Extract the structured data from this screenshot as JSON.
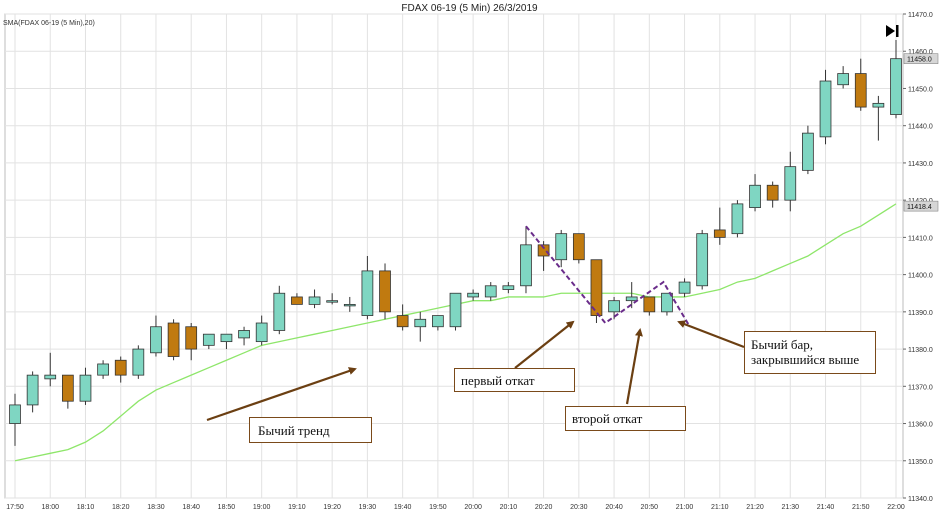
{
  "chart_data": {
    "type": "candlestick",
    "title": "FDAX 06-19 (5 Min)  26/3/2019",
    "indicator": "SMA(FDAX 06-19 (5 Min),20)",
    "ylim": [
      11340,
      11470
    ],
    "yticks": [
      11340,
      11350,
      11360,
      11370,
      11380,
      11390,
      11400,
      11410,
      11420,
      11430,
      11440,
      11450,
      11460,
      11470
    ],
    "ytick_labels": [
      "11340.0",
      "11350.0",
      "11360.0",
      "11370.0",
      "11380.0",
      "11390.0",
      "11400.0",
      "11410.0",
      "11420.0",
      "11430.0",
      "11440.0",
      "11450.0",
      "11460.0",
      "11470.0"
    ],
    "xtick_labels": [
      "17:50",
      "18:00",
      "18:10",
      "18:20",
      "18:30",
      "18:40",
      "18:50",
      "19:00",
      "19:10",
      "19:20",
      "19:30",
      "19:40",
      "19:50",
      "20:00",
      "20:10",
      "20:20",
      "20:30",
      "20:40",
      "20:50",
      "21:00",
      "21:10",
      "21:20",
      "21:30",
      "21:40",
      "21:50",
      "22:00"
    ],
    "price_tags": [
      {
        "label": "11458.0",
        "value": 11458.0
      },
      {
        "label": "11418.4",
        "value": 11418.4
      }
    ],
    "top_tag_label": "11460.0",
    "colors": {
      "up": "#7fd6c2",
      "down": "#c07a10",
      "outline": "#333333",
      "sma": "#8ee66a",
      "grid": "#e2e2e2",
      "annotation": "#6b3f12",
      "zigzag": "#6a2c8a"
    },
    "grid": true,
    "candles": [
      {
        "o": 11360,
        "h": 11368,
        "l": 11354,
        "c": 11365
      },
      {
        "o": 11365,
        "h": 11374,
        "l": 11363,
        "c": 11373
      },
      {
        "o": 11372,
        "h": 11379,
        "l": 11370,
        "c": 11373
      },
      {
        "o": 11373,
        "h": 11373,
        "l": 11364,
        "c": 11366
      },
      {
        "o": 11366,
        "h": 11375,
        "l": 11365,
        "c": 11373
      },
      {
        "o": 11373,
        "h": 11377,
        "l": 11372,
        "c": 11376
      },
      {
        "o": 11377,
        "h": 11378,
        "l": 11371,
        "c": 11373
      },
      {
        "o": 11373,
        "h": 11381,
        "l": 11372,
        "c": 11380
      },
      {
        "o": 11379,
        "h": 11389,
        "l": 11378,
        "c": 11386
      },
      {
        "o": 11387,
        "h": 11388,
        "l": 11377,
        "c": 11378
      },
      {
        "o": 11386,
        "h": 11387,
        "l": 11377,
        "c": 11380
      },
      {
        "o": 11381,
        "h": 11384,
        "l": 11380,
        "c": 11384
      },
      {
        "o": 11382,
        "h": 11384,
        "l": 11380,
        "c": 11384
      },
      {
        "o": 11383,
        "h": 11386,
        "l": 11381,
        "c": 11385
      },
      {
        "o": 11382,
        "h": 11389,
        "l": 11381,
        "c": 11387
      },
      {
        "o": 11385,
        "h": 11397,
        "l": 11384,
        "c": 11395
      },
      {
        "o": 11394,
        "h": 11395,
        "l": 11392,
        "c": 11392
      },
      {
        "o": 11392,
        "h": 11396,
        "l": 11391,
        "c": 11394
      },
      {
        "o": 11393,
        "h": 11395,
        "l": 11392,
        "c": 11393
      },
      {
        "o": 11392,
        "h": 11394,
        "l": 11390,
        "c": 11392
      },
      {
        "o": 11389,
        "h": 11405,
        "l": 11388,
        "c": 11401
      },
      {
        "o": 11401,
        "h": 11403,
        "l": 11388,
        "c": 11390
      },
      {
        "o": 11389,
        "h": 11392,
        "l": 11385,
        "c": 11386
      },
      {
        "o": 11386,
        "h": 11390,
        "l": 11382,
        "c": 11388
      },
      {
        "o": 11386,
        "h": 11389,
        "l": 11385,
        "c": 11389
      },
      {
        "o": 11386,
        "h": 11395,
        "l": 11385,
        "c": 11395
      },
      {
        "o": 11394,
        "h": 11396,
        "l": 11393,
        "c": 11395
      },
      {
        "o": 11394,
        "h": 11398,
        "l": 11393,
        "c": 11397
      },
      {
        "o": 11396,
        "h": 11398,
        "l": 11395,
        "c": 11397
      },
      {
        "o": 11397,
        "h": 11413,
        "l": 11395,
        "c": 11408
      },
      {
        "o": 11408,
        "h": 11409,
        "l": 11401,
        "c": 11405
      },
      {
        "o": 11404,
        "h": 11412,
        "l": 11402,
        "c": 11411
      },
      {
        "o": 11411,
        "h": 11411,
        "l": 11403,
        "c": 11404
      },
      {
        "o": 11404,
        "h": 11404,
        "l": 11387,
        "c": 11389
      },
      {
        "o": 11390,
        "h": 11394,
        "l": 11388,
        "c": 11393
      },
      {
        "o": 11393,
        "h": 11398,
        "l": 11391,
        "c": 11394
      },
      {
        "o": 11394,
        "h": 11394,
        "l": 11389,
        "c": 11390
      },
      {
        "o": 11390,
        "h": 11395,
        "l": 11389,
        "c": 11395
      },
      {
        "o": 11395,
        "h": 11399,
        "l": 11394,
        "c": 11398
      },
      {
        "o": 11397,
        "h": 11412,
        "l": 11396,
        "c": 11411
      },
      {
        "o": 11412,
        "h": 11418,
        "l": 11408,
        "c": 11410
      },
      {
        "o": 11411,
        "h": 11420,
        "l": 11410,
        "c": 11419
      },
      {
        "o": 11418,
        "h": 11427,
        "l": 11417,
        "c": 11424
      },
      {
        "o": 11424,
        "h": 11425,
        "l": 11418,
        "c": 11420
      },
      {
        "o": 11420,
        "h": 11433,
        "l": 11417,
        "c": 11429
      },
      {
        "o": 11428,
        "h": 11440,
        "l": 11427,
        "c": 11438
      },
      {
        "o": 11437,
        "h": 11455,
        "l": 11435,
        "c": 11452
      },
      {
        "o": 11451,
        "h": 11456,
        "l": 11450,
        "c": 11454
      },
      {
        "o": 11454,
        "h": 11458,
        "l": 11444,
        "c": 11445
      },
      {
        "o": 11445,
        "h": 11448,
        "l": 11436,
        "c": 11446
      },
      {
        "o": 11443,
        "h": 11463,
        "l": 11442,
        "c": 11458
      }
    ],
    "sma": [
      11350,
      11351,
      11352,
      11353,
      11355,
      11358,
      11362,
      11366,
      11369,
      11371,
      11373,
      11375,
      11377,
      11379,
      11381,
      11382,
      11383,
      11384,
      11385,
      11386,
      11387,
      11388,
      11389,
      11390,
      11391,
      11392,
      11393,
      11393,
      11394,
      11394,
      11394,
      11395,
      11395,
      11395,
      11395,
      11395,
      11394,
      11394,
      11394,
      11395,
      11396,
      11398,
      11399,
      11401,
      11403,
      11405,
      11408,
      11411,
      11413,
      11416,
      11419
    ],
    "annotations": [
      {
        "text": "Бычий тренд"
      },
      {
        "text": "первый  откат"
      },
      {
        "text": "второй откат"
      },
      {
        "text": "Бычий бар,\nзакрывшийся выше"
      }
    ]
  },
  "icons": {
    "play_icon": "play-skip-icon"
  }
}
